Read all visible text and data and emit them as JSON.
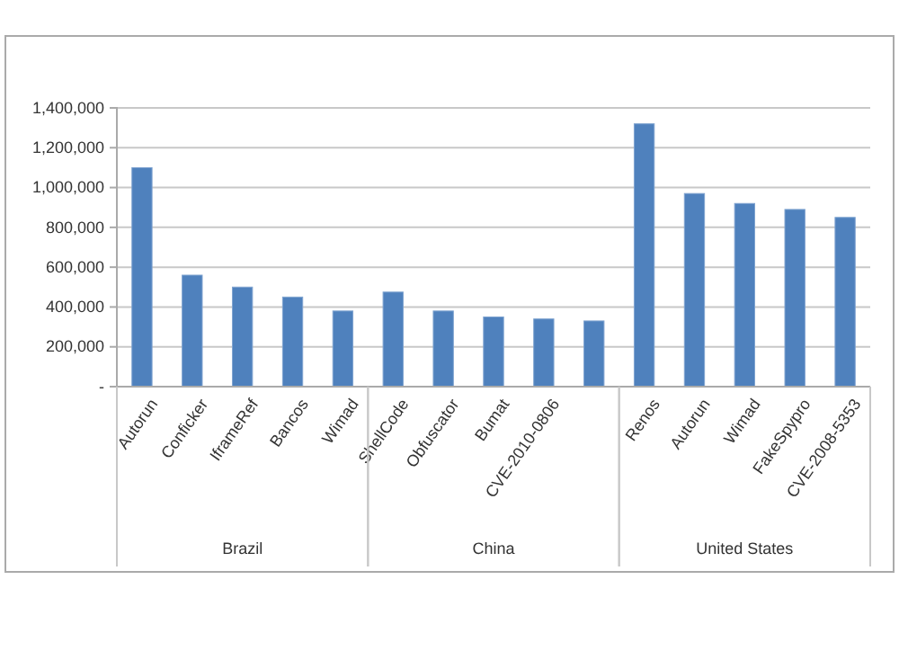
{
  "chart_data": {
    "type": "bar",
    "categories": [
      "Autorun",
      "Conficker",
      "IframeRef",
      "Bancos",
      "Wimad",
      "ShellCode",
      "Obfuscator",
      "Bumat",
      "CVE-2010-0806",
      null,
      "Renos",
      "Autorun",
      "Wimad",
      "FakeSpypro",
      "CVE-2008-5353"
    ],
    "values": [
      1100000,
      560000,
      500000,
      450000,
      380000,
      475000,
      380000,
      350000,
      340000,
      330000,
      1320000,
      970000,
      920000,
      890000,
      850000
    ],
    "color": "#4f81bd",
    "ylim": [
      0,
      1400000
    ],
    "yticks": [
      {
        "value": 0,
        "label": "-"
      },
      {
        "value": 200000,
        "label": "200,000"
      },
      {
        "value": 400000,
        "label": "400,000"
      },
      {
        "value": 600000,
        "label": "600,000"
      },
      {
        "value": 800000,
        "label": "800,000"
      },
      {
        "value": 1000000,
        "label": "1,000,000"
      },
      {
        "value": 1200000,
        "label": "1,200,000"
      },
      {
        "value": 1400000,
        "label": "1,400,000"
      }
    ],
    "grid": "y",
    "annotations": [
      "Brazil",
      "China",
      "United States"
    ]
  }
}
